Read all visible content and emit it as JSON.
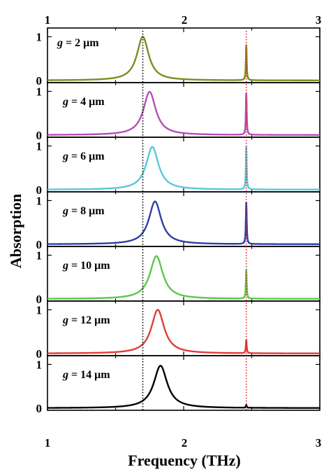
{
  "chart_data": {
    "type": "line",
    "xlabel": "Frequency (THz)",
    "ylabel": "Absorption",
    "xlim": [
      1,
      3
    ],
    "x_ticks": [
      "1",
      "2",
      "3"
    ],
    "y_ticks": [
      "0",
      "1"
    ],
    "ylim": [
      -0.05,
      1.2
    ],
    "reference_lines": [
      {
        "x": 1.7,
        "color": "#000000",
        "style": "dotted"
      },
      {
        "x": 2.46,
        "color": "#e0202a",
        "style": "dotted"
      }
    ],
    "panels": [
      {
        "label_var": "g",
        "label_val": "= 2 μm",
        "color": "#7f8c1e",
        "broad_peak_x": 1.7,
        "broad_peak_y": 1.0,
        "broad_width": 0.105,
        "sharp_peak_x": 2.46,
        "sharp_peak_y": 0.8
      },
      {
        "label_var": "g",
        "label_val": "= 4 μm",
        "color": "#b44fb7",
        "broad_peak_x": 1.75,
        "broad_peak_y": 0.99,
        "broad_width": 0.11,
        "sharp_peak_x": 2.46,
        "sharp_peak_y": 0.95
      },
      {
        "label_var": "g",
        "label_val": "= 6 μm",
        "color": "#5ac8d8",
        "broad_peak_x": 1.77,
        "broad_peak_y": 0.98,
        "broad_width": 0.11,
        "sharp_peak_x": 2.46,
        "sharp_peak_y": 0.98
      },
      {
        "label_var": "g",
        "label_val": "= 8 μm",
        "color": "#2f3ea6",
        "broad_peak_x": 1.79,
        "broad_peak_y": 0.98,
        "broad_width": 0.11,
        "sharp_peak_x": 2.46,
        "sharp_peak_y": 0.95
      },
      {
        "label_var": "g",
        "label_val": "= 10 μm",
        "color": "#5ac94a",
        "broad_peak_x": 1.8,
        "broad_peak_y": 0.98,
        "broad_width": 0.115,
        "sharp_peak_x": 2.46,
        "sharp_peak_y": 0.65
      },
      {
        "label_var": "g",
        "label_val": "= 12 μm",
        "color": "#e23b3b",
        "broad_peak_x": 1.81,
        "broad_peak_y": 1.0,
        "broad_width": 0.115,
        "sharp_peak_x": 2.46,
        "sharp_peak_y": 0.3
      },
      {
        "label_var": "g",
        "label_val": "= 14 μm",
        "color": "#000000",
        "broad_peak_x": 1.83,
        "broad_peak_y": 0.97,
        "broad_width": 0.12,
        "sharp_peak_x": 2.46,
        "sharp_peak_y": 0.06
      }
    ]
  }
}
